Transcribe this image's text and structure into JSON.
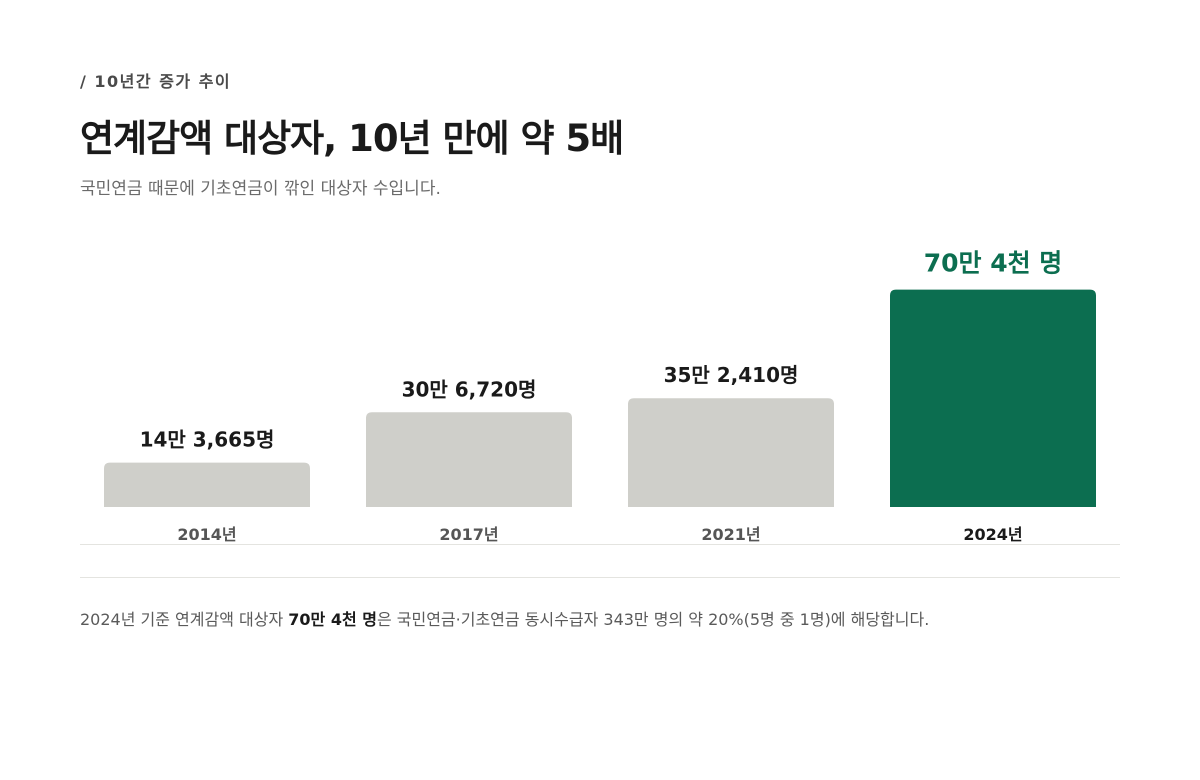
{
  "header": {
    "kicker": "/ 10년간 증가 추이",
    "title": "연계감액 대상자, 10년 만에 약 5배",
    "subtitle": "국민연금 때문에 기초연금이 깎인 대상자 수입니다."
  },
  "chart_data": {
    "type": "bar",
    "categories": [
      "2014년",
      "2017년",
      "2021년",
      "2024년"
    ],
    "values": [
      143665,
      306720,
      352410,
      704000
    ],
    "value_labels": [
      "14만 3,665명",
      "30만 6,720명",
      "35만 2,410명",
      "70만 4천 명"
    ],
    "highlight_index": 3,
    "ylim": [
      0,
      800000
    ],
    "colors": {
      "default_bar": "#cfcfca",
      "highlight_bar": "#0c6e50",
      "default_label": "#1a1a1a",
      "highlight_label": "#0c6e50",
      "default_category": "#555555",
      "highlight_category": "#1a1a1a"
    }
  },
  "footnote": {
    "prefix": "2024년 기준 연계감액 대상자 ",
    "emphasis": "70만 4천 명",
    "suffix": "은 국민연금·기초연금 동시수급자 343만 명의 약 20%(5명 중 1명)에 해당합니다."
  }
}
